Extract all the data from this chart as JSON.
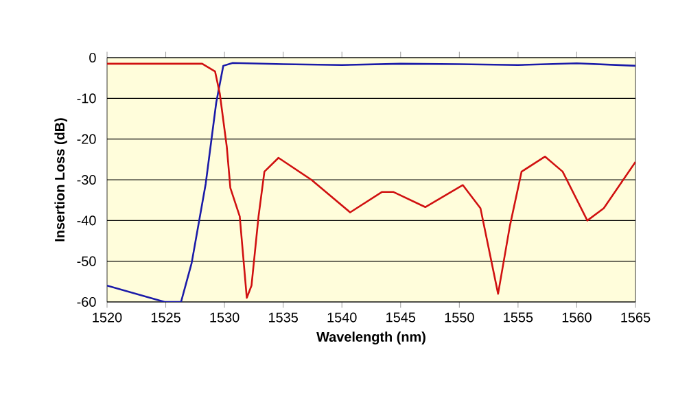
{
  "chart_data": {
    "type": "line",
    "xlabel": "Wavelength (nm)",
    "ylabel": "Insertion Loss (dB)",
    "xlim": [
      1520,
      1565
    ],
    "xticks": [
      1520,
      1525,
      1530,
      1535,
      1540,
      1545,
      1550,
      1555,
      1560,
      1565
    ],
    "ylim": [
      -60,
      0
    ],
    "yticks": [
      -60,
      -50,
      -40,
      -30,
      -20,
      -10,
      0
    ],
    "grid": "y",
    "series": [
      {
        "color": "#1a1aa8",
        "x": [
          1520,
          1524.9,
          1526.3,
          1527.2,
          1528.4,
          1529.3,
          1529.9,
          1530.7,
          1535,
          1540,
          1545,
          1550,
          1555,
          1560,
          1565
        ],
        "values": [
          -56,
          -60,
          -60,
          -50.5,
          -31,
          -11,
          -2,
          -1.3,
          -1.6,
          -1.8,
          -1.5,
          -1.6,
          -1.8,
          -1.4,
          -2
        ]
      },
      {
        "color": "#d01010",
        "x": [
          1520,
          1528.1,
          1529.2,
          1529.6,
          1530.2,
          1530.5,
          1531.3,
          1531.9,
          1532.3,
          1532.9,
          1533.4,
          1534.6,
          1537.4,
          1540.7,
          1543.4,
          1544.4,
          1547.1,
          1550.3,
          1551.8,
          1553.3,
          1554.3,
          1555.3,
          1557.3,
          1558.8,
          1560.9,
          1562.3,
          1565
        ],
        "values": [
          -1.5,
          -1.5,
          -3.4,
          -8.8,
          -22,
          -32,
          -39,
          -59,
          -56,
          -39,
          -28,
          -24.6,
          -30,
          -38,
          -33,
          -33,
          -36.7,
          -31.3,
          -37,
          -58,
          -41.4,
          -28,
          -24.3,
          -28,
          -40,
          -37,
          -25.6
        ]
      }
    ]
  }
}
